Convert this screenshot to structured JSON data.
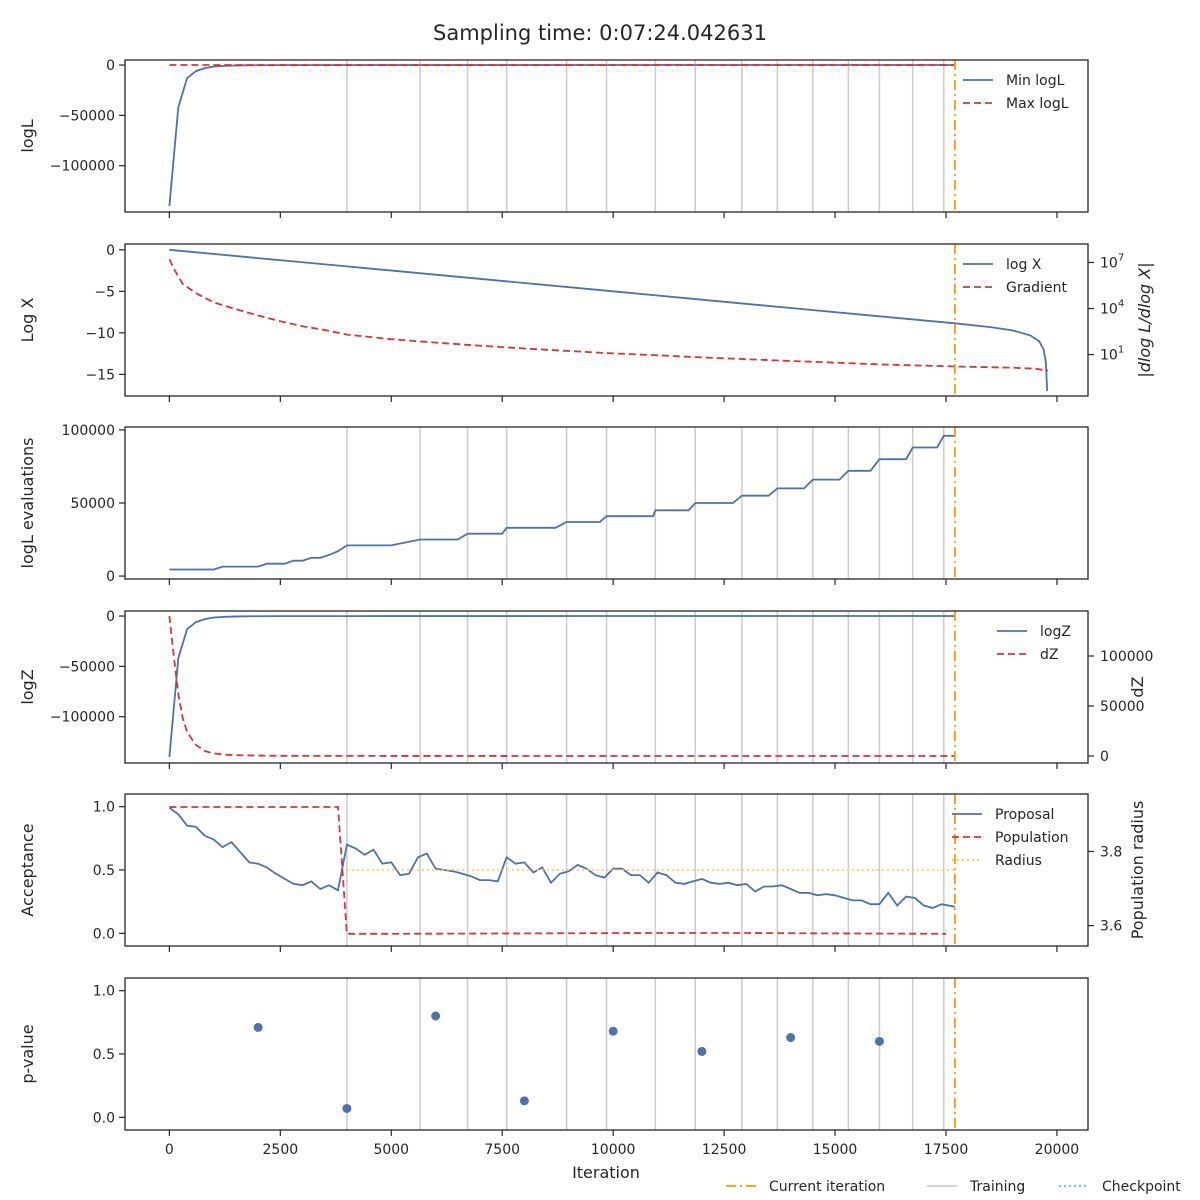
{
  "suptitle": "Sampling time: 0:07:24.042631",
  "xlabel": "Iteration",
  "x_ticks": [
    0,
    2500,
    5000,
    7500,
    10000,
    12500,
    15000,
    17500,
    20000
  ],
  "xlim": [
    -1000,
    20700
  ],
  "current_iteration": 17700,
  "training_iterations": [
    4000,
    5650,
    6720,
    7600,
    8950,
    9850,
    10950,
    11850,
    12900,
    13700,
    14500,
    15300,
    16000,
    16750,
    17450
  ],
  "colors": {
    "blue": "#4c72b0",
    "red": "#dd3333",
    "orange": "#ff9900",
    "gold": "#ffcc33",
    "grey": "#cccccc",
    "cyan": "#56c5d0",
    "axis": "#262626"
  },
  "bottom_legend": [
    {
      "label": "Current iteration",
      "style": "dashdot",
      "color": "#ff9900"
    },
    {
      "label": "Training",
      "style": "solid",
      "color": "#cccccc"
    },
    {
      "label": "Checkpoint",
      "style": "dotted",
      "color": "#56c5d0"
    }
  ],
  "chart_data": [
    {
      "type": "line",
      "ylabel": "logL",
      "ylim": [
        -146000,
        5000
      ],
      "y_ticks": [
        {
          "v": 0,
          "label": "0"
        },
        {
          "v": -50000,
          "label": "−50000"
        },
        {
          "v": -100000,
          "label": "−100000"
        }
      ],
      "legend": [
        "Min logL",
        "Max logL"
      ],
      "series": [
        {
          "name": "Min logL",
          "style": "solid",
          "color": "#4c72b0",
          "x": [
            0,
            200,
            400,
            600,
            800,
            1000,
            1300,
            1700,
            2500,
            4000,
            10000,
            17700
          ],
          "y": [
            -140000,
            -42000,
            -13000,
            -6000,
            -3000,
            -1500,
            -700,
            -300,
            -100,
            -40,
            -10,
            0
          ]
        },
        {
          "name": "Max logL",
          "style": "dashed",
          "color": "#dd3333",
          "x": [
            0,
            17700
          ],
          "y": [
            0,
            0
          ]
        }
      ]
    },
    {
      "type": "line",
      "ylabel": "Log X",
      "ylim": [
        -17.6,
        0.7
      ],
      "y_ticks": [
        {
          "v": 0,
          "label": "0"
        },
        {
          "v": -5,
          "label": "−5"
        },
        {
          "v": -10,
          "label": "−10"
        },
        {
          "v": -15,
          "label": "−15"
        }
      ],
      "y2label": "|dlog L/dlog X|",
      "y2_log": true,
      "y2lim": [
        0.02,
        160000000
      ],
      "y2_ticks": [
        {
          "v": 10,
          "label": "10",
          "exp": "1"
        },
        {
          "v": 10000,
          "label": "10",
          "exp": "4"
        },
        {
          "v": 10000000,
          "label": "10",
          "exp": "7"
        }
      ],
      "legend": [
        "log X",
        "Gradient"
      ],
      "series": [
        {
          "name": "log X",
          "style": "solid",
          "color": "#4c72b0",
          "axis": "left",
          "x": [
            0,
            2000,
            4000,
            6000,
            8000,
            10000,
            12000,
            14000,
            16000,
            17700,
            18500,
            19000,
            19400,
            19600,
            19700,
            19750,
            19780
          ],
          "y": [
            0,
            -1.0,
            -2.0,
            -3.0,
            -4.0,
            -5.0,
            -6.0,
            -7.0,
            -8.0,
            -8.85,
            -9.3,
            -9.7,
            -10.3,
            -11.0,
            -12.0,
            -13.5,
            -17.0
          ]
        },
        {
          "name": "Gradient",
          "style": "dashed",
          "color": "#dd3333",
          "axis": "right",
          "x": [
            0,
            100,
            300,
            600,
            1000,
            1500,
            2000,
            2500,
            3000,
            3500,
            4000,
            5000,
            6000,
            7000,
            8000,
            9000,
            10000,
            11000,
            12000,
            13000,
            14000,
            15000,
            16000,
            17000,
            18000,
            19000,
            19500,
            19800
          ],
          "y": [
            16000000,
            4000000,
            400000,
            100000,
            25000,
            9000,
            3500,
            1500,
            700,
            400,
            200,
            100,
            60,
            38,
            25,
            17,
            12,
            9,
            6.5,
            5,
            3.8,
            3,
            2.3,
            1.9,
            1.6,
            1.4,
            1.2,
            0.9
          ]
        }
      ]
    },
    {
      "type": "line",
      "ylabel": "logL evaluations",
      "ylim": [
        -2000,
        102000
      ],
      "y_ticks": [
        {
          "v": 0,
          "label": "0"
        },
        {
          "v": 50000,
          "label": "50000"
        },
        {
          "v": 100000,
          "label": "100000"
        }
      ],
      "legend": [],
      "series": [
        {
          "name": "",
          "style": "solid",
          "color": "#4c72b0",
          "step": true,
          "x": [
            0,
            1000,
            1200,
            2000,
            2200,
            2600,
            2800,
            3000,
            3200,
            3400,
            3600,
            3800,
            4000,
            5000,
            5650,
            6500,
            6720,
            7500,
            7600,
            8700,
            8950,
            9700,
            9850,
            10900,
            10950,
            11700,
            11850,
            12700,
            12900,
            13500,
            13700,
            14300,
            14500,
            15100,
            15300,
            15800,
            16000,
            16600,
            16750,
            17300,
            17450,
            17700
          ],
          "y": [
            4500,
            4500,
            6500,
            6500,
            8500,
            8500,
            10500,
            10500,
            12500,
            12500,
            14500,
            17000,
            21000,
            21000,
            25000,
            25000,
            29000,
            29000,
            33000,
            33000,
            37000,
            37000,
            41000,
            41000,
            45000,
            45000,
            50000,
            50000,
            55000,
            55000,
            60000,
            60000,
            66000,
            66000,
            72000,
            72000,
            80000,
            80000,
            88000,
            88000,
            96000,
            96000
          ]
        }
      ]
    },
    {
      "type": "line",
      "ylabel": "logZ",
      "ylim": [
        -146000,
        5000
      ],
      "y_ticks": [
        {
          "v": 0,
          "label": "0"
        },
        {
          "v": -50000,
          "label": "−50000"
        },
        {
          "v": -100000,
          "label": "−100000"
        }
      ],
      "y2label": "dZ",
      "y2lim": [
        -7000,
        145000
      ],
      "y2_ticks": [
        {
          "v": 0,
          "label": "0"
        },
        {
          "v": 50000,
          "label": "50000"
        },
        {
          "v": 100000,
          "label": "100000"
        }
      ],
      "legend": [
        "logZ",
        "dZ"
      ],
      "series": [
        {
          "name": "logZ",
          "style": "solid",
          "color": "#4c72b0",
          "axis": "left",
          "x": [
            0,
            200,
            400,
            600,
            800,
            1000,
            1300,
            1700,
            2500,
            4000,
            10000,
            17700
          ],
          "y": [
            -140000,
            -42000,
            -13000,
            -6000,
            -3000,
            -1500,
            -700,
            -300,
            -100,
            -40,
            -10,
            0
          ]
        },
        {
          "name": "dZ",
          "style": "dashed",
          "color": "#dd3333",
          "axis": "right",
          "x": [
            0,
            100,
            200,
            300,
            400,
            600,
            800,
            1000,
            1300,
            1700,
            2500,
            4000,
            10000,
            17700
          ],
          "y": [
            140000,
            100000,
            62000,
            38000,
            24000,
            11000,
            5000,
            2500,
            1200,
            600,
            200,
            80,
            20,
            0
          ]
        }
      ]
    },
    {
      "type": "line",
      "ylabel": "Acceptance",
      "ylim": [
        -0.1,
        1.1
      ],
      "y_ticks": [
        {
          "v": 0.0,
          "label": "0.0"
        },
        {
          "v": 0.5,
          "label": "0.5"
        },
        {
          "v": 1.0,
          "label": "1.0"
        }
      ],
      "y2label": "Population radius",
      "y2lim": [
        3.545,
        3.955
      ],
      "y2_ticks": [
        {
          "v": 3.6,
          "label": "3.6"
        },
        {
          "v": 3.8,
          "label": "3.8"
        }
      ],
      "legend": [
        "Proposal",
        "Population",
        "Radius"
      ],
      "series": [
        {
          "name": "Proposal",
          "style": "solid",
          "color": "#4c72b0",
          "axis": "left",
          "x": [
            0,
            200,
            400,
            600,
            800,
            1000,
            1200,
            1400,
            1600,
            1800,
            2000,
            2200,
            2400,
            2600,
            2800,
            3000,
            3200,
            3400,
            3600,
            3800,
            4000,
            4200,
            4400,
            4600,
            4800,
            5000,
            5200,
            5400,
            5600,
            5800,
            6000,
            6200,
            6400,
            6600,
            6800,
            7000,
            7200,
            7400,
            7600,
            7800,
            8000,
            8200,
            8400,
            8600,
            8800,
            9000,
            9200,
            9400,
            9600,
            9800,
            10000,
            10200,
            10400,
            10600,
            10800,
            11000,
            11200,
            11400,
            11600,
            11800,
            12000,
            12200,
            12400,
            12600,
            12800,
            13000,
            13200,
            13400,
            13600,
            13800,
            14000,
            14200,
            14400,
            14600,
            14800,
            15000,
            15200,
            15400,
            15600,
            15800,
            16000,
            16200,
            16400,
            16600,
            16800,
            17000,
            17200,
            17400,
            17700
          ],
          "y": [
            0.99,
            0.94,
            0.85,
            0.84,
            0.77,
            0.74,
            0.68,
            0.72,
            0.64,
            0.56,
            0.55,
            0.52,
            0.47,
            0.43,
            0.39,
            0.38,
            0.41,
            0.35,
            0.38,
            0.34,
            0.7,
            0.67,
            0.62,
            0.66,
            0.55,
            0.56,
            0.46,
            0.47,
            0.6,
            0.63,
            0.51,
            0.5,
            0.49,
            0.47,
            0.45,
            0.42,
            0.42,
            0.41,
            0.6,
            0.55,
            0.56,
            0.48,
            0.52,
            0.4,
            0.47,
            0.49,
            0.54,
            0.51,
            0.46,
            0.44,
            0.51,
            0.51,
            0.46,
            0.46,
            0.4,
            0.48,
            0.46,
            0.4,
            0.39,
            0.41,
            0.43,
            0.4,
            0.39,
            0.4,
            0.38,
            0.39,
            0.33,
            0.37,
            0.37,
            0.38,
            0.35,
            0.32,
            0.32,
            0.3,
            0.31,
            0.3,
            0.28,
            0.26,
            0.26,
            0.23,
            0.23,
            0.32,
            0.22,
            0.29,
            0.28,
            0.22,
            0.2,
            0.23,
            0.21
          ]
        },
        {
          "name": "Population",
          "style": "dashed",
          "color": "#dd3333",
          "axis": "right",
          "x": [
            0,
            3800,
            4000,
            5000,
            8000,
            11000,
            13000,
            15000,
            17500
          ],
          "y": [
            3.92,
            3.92,
            3.578,
            3.578,
            3.579,
            3.58,
            3.58,
            3.579,
            3.578
          ]
        },
        {
          "name": "Radius",
          "style": "dotted",
          "color": "#ffcc33",
          "axis": "left",
          "x": [
            4000,
            17700
          ],
          "y": [
            0.5,
            0.5
          ]
        }
      ]
    },
    {
      "type": "scatter",
      "ylabel": "p-value",
      "ylim": [
        -0.1,
        1.1
      ],
      "y_ticks": [
        {
          "v": 0.0,
          "label": "0.0"
        },
        {
          "v": 0.5,
          "label": "0.5"
        },
        {
          "v": 1.0,
          "label": "1.0"
        }
      ],
      "legend": [],
      "series": [
        {
          "name": "",
          "color": "#4c72b0",
          "x": [
            2000,
            4000,
            6000,
            8000,
            10000,
            12000,
            14000,
            16000
          ],
          "y": [
            0.71,
            0.07,
            0.8,
            0.13,
            0.68,
            0.52,
            0.63,
            0.6
          ]
        }
      ]
    }
  ]
}
